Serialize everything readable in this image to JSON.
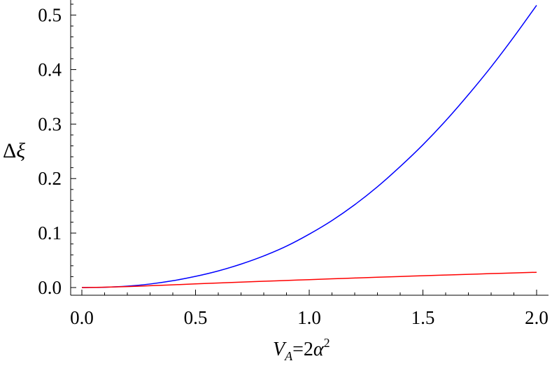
{
  "chart_data": {
    "type": "line",
    "title": "",
    "xlabel": "V_A=2α^2",
    "ylabel": "Δξ",
    "xlim": [
      0.0,
      2.0
    ],
    "ylim": [
      0.0,
      0.52
    ],
    "x_ticks": [
      "0.0",
      "0.5",
      "1.0",
      "1.5",
      "2.0"
    ],
    "y_ticks": [
      "0.0",
      "0.1",
      "0.2",
      "0.3",
      "0.4",
      "0.5"
    ],
    "grid": false,
    "legend": "none",
    "series": [
      {
        "color": "#0000ff",
        "x": [
          0.0,
          0.1,
          0.2,
          0.3,
          0.4,
          0.5,
          0.6,
          0.7,
          0.8,
          0.9,
          1.0,
          1.1,
          1.2,
          1.3,
          1.4,
          1.5,
          1.6,
          1.7,
          1.8,
          1.9,
          2.0
        ],
        "y": [
          0.0,
          0.0005,
          0.0025,
          0.0065,
          0.0125,
          0.0205,
          0.0305,
          0.043,
          0.058,
          0.076,
          0.098,
          0.123,
          0.152,
          0.185,
          0.222,
          0.262,
          0.306,
          0.354,
          0.405,
          0.46,
          0.518
        ]
      },
      {
        "color": "#ff0000",
        "x": [
          0.0,
          0.1,
          0.2,
          0.3,
          0.4,
          0.5,
          0.6,
          0.7,
          0.8,
          0.9,
          1.0,
          1.1,
          1.2,
          1.3,
          1.4,
          1.5,
          1.6,
          1.7,
          1.8,
          1.9,
          2.0
        ],
        "y": [
          0.0,
          0.0006,
          0.0018,
          0.0033,
          0.005,
          0.0067,
          0.0083,
          0.0099,
          0.0115,
          0.013,
          0.0145,
          0.016,
          0.0175,
          0.0189,
          0.0203,
          0.0217,
          0.023,
          0.0243,
          0.0256,
          0.0268,
          0.028
        ]
      }
    ]
  }
}
